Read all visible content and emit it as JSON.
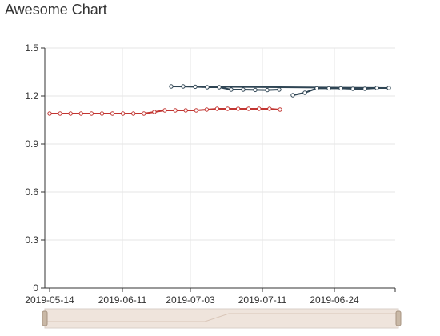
{
  "title": "Awesome Chart",
  "colors": {
    "series_red": "#c23531",
    "series_dark": "#2f4554",
    "grid": "#e6e6e6",
    "axis": "#333333",
    "zoom_fill": "#efe4dc",
    "zoom_border": "#d8cfc8",
    "handle": "#c9b8a6"
  },
  "chart_data": {
    "type": "line",
    "title": "Awesome Chart",
    "xlabel": "",
    "ylabel": "",
    "ylim": [
      0,
      1.5
    ],
    "y_ticks": [
      "0",
      "0.3",
      "0.6",
      "0.9",
      "1.2",
      "1.5"
    ],
    "x_tick_labels": [
      "2019-05-14",
      "2019-06-11",
      "2019-07-03",
      "2019-07-11",
      "2019-06-24"
    ],
    "grid": true,
    "data_zoom_slider": true,
    "series": [
      {
        "color": "#c23531",
        "values": [
          1.09,
          1.09,
          1.09,
          1.09,
          1.09,
          1.09,
          1.09,
          1.09,
          1.09,
          1.09,
          1.1,
          1.11,
          1.11,
          1.11,
          1.11,
          1.115,
          1.12,
          1.12,
          1.12,
          1.12,
          1.12,
          1.12,
          1.115
        ],
        "start_index": 0
      },
      {
        "color": "#2f4554",
        "values": [
          1.26,
          1.26,
          1.26,
          1.255,
          1.255,
          1.24,
          1.24,
          1.24,
          1.235,
          1.24,
          1.24,
          1.25,
          1.25,
          1.25,
          1.25,
          1.25,
          1.25,
          1.25,
          1.25,
          1.25,
          1.25,
          1.25,
          1.25,
          1.245
        ],
        "start_index": 10,
        "note_on_shape": "second series wraps back after 2019-07-11 segment"
      }
    ]
  }
}
